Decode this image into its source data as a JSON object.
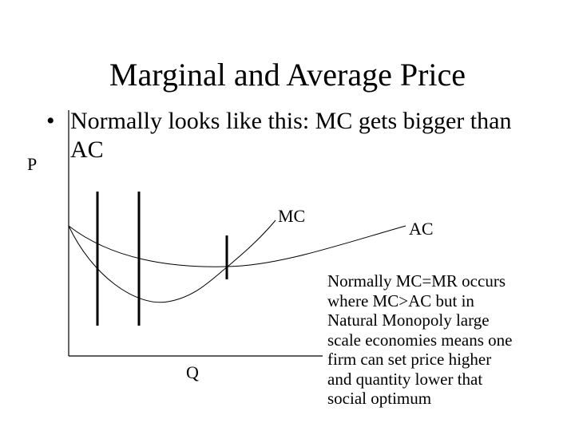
{
  "slide": {
    "title": "Marginal and Average Price",
    "bullet_symbol": "•",
    "bullet_text": "Normally looks like this: MC gets bigger than AC"
  },
  "diagram": {
    "y_axis_label": "P",
    "x_axis_label": "Q",
    "curves": [
      {
        "name": "mc-curve",
        "label": "MC"
      },
      {
        "name": "ac-curve",
        "label": "AC"
      }
    ],
    "colors": {
      "stroke": "#000000",
      "background": "#ffffff"
    }
  },
  "note": {
    "lines": [
      "Normally MC=MR occurs",
      "where MC>AC but in",
      "Natural Monopoly large",
      "scale economies means one",
      "firm can set price higher",
      "and quantity lower that",
      "social optimum"
    ]
  }
}
